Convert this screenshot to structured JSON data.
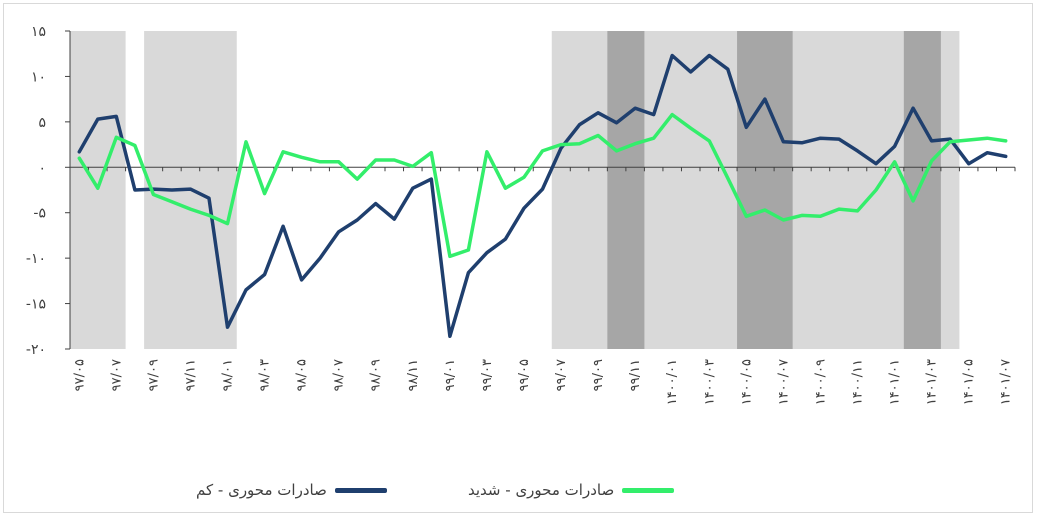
{
  "chart_data": {
    "type": "line",
    "title": "",
    "xlabel": "",
    "ylabel": "",
    "ylim": [
      -20,
      15
    ],
    "y_ticks": [
      "۱۵",
      "۱۰",
      "۵",
      "۰",
      "-۵",
      "-۱۰",
      "-۱۵",
      "-۲۰"
    ],
    "y_tick_values": [
      15,
      10,
      5,
      0,
      -5,
      -10,
      -15,
      -20
    ],
    "x": [
      "۹۷/۰۵",
      "۹۷/۰۶",
      "۹۷/۰۷",
      "۹۷/۰۸",
      "۹۷/۰۹",
      "۹۷/۱۰",
      "۹۷/۱۱",
      "۹۷/۱۲",
      "۹۸/۰۱",
      "۹۸/۰۲",
      "۹۸/۰۳",
      "۹۸/۰۴",
      "۹۸/۰۵",
      "۹۸/۰۶",
      "۹۸/۰۷",
      "۹۸/۰۸",
      "۹۸/۰۹",
      "۹۸/۱۰",
      "۹۸/۱۱",
      "۹۸/۱۲",
      "۹۹/۰۱",
      "۹۹/۰۲",
      "۹۹/۰۳",
      "۹۹/۰۴",
      "۹۹/۰۵",
      "۹۹/۰۶",
      "۹۹/۰۷",
      "۹۹/۰۸",
      "۹۹/۰۹",
      "۹۹/۱۰",
      "۹۹/۱۱",
      "۹۹/۱۲",
      "۱۴۰۰/۰۱",
      "۱۴۰۰/۰۲",
      "۱۴۰۰/۰۳",
      "۱۴۰۰/۰۴",
      "۱۴۰۰/۰۵",
      "۱۴۰۰/۰۶",
      "۱۴۰۰/۰۷",
      "۱۴۰۰/۰۸",
      "۱۴۰۰/۰۹",
      "۱۴۰۰/۱۰",
      "۱۴۰۰/۱۱",
      "۱۴۰۰/۱۲",
      "۱۴۰۱/۰۱",
      "۱۴۰۱/۰۲",
      "۱۴۰۱/۰۳",
      "۱۴۰۱/۰۴",
      "۱۴۰۱/۰۵",
      "۱۴۰۱/۰۶",
      "۱۴۰۱/۰۷"
    ],
    "x_tick_labels": [
      "۹۷/۰۵",
      "۹۷/۰۷",
      "۹۷/۰۹",
      "۹۷/۱۱",
      "۹۸/۰۱",
      "۹۸/۰۳",
      "۹۸/۰۵",
      "۹۸/۰۷",
      "۹۸/۰۹",
      "۹۸/۱۱",
      "۹۹/۰۱",
      "۹۹/۰۳",
      "۹۹/۰۵",
      "۹۹/۰۷",
      "۹۹/۰۹",
      "۹۹/۱۱",
      "۱۴۰۰/۰۱",
      "۱۴۰۰/۰۳",
      "۱۴۰۰/۰۵",
      "۱۴۰۰/۰۷",
      "۱۴۰۰/۰۹",
      "۱۴۰۰/۱۱",
      "۱۴۰۱/۰۱",
      "۱۴۰۱/۰۳",
      "۱۴۰۱/۰۵",
      "۱۴۰۱/۰۷"
    ],
    "series": [
      {
        "name": "صادرات محوری - کم",
        "color": "#1f3f6e",
        "values": [
          1.7,
          5.3,
          5.6,
          -2.5,
          -2.4,
          -2.5,
          -2.4,
          -3.4,
          -17.6,
          -13.5,
          -11.8,
          -6.5,
          -12.4,
          -10.0,
          -7.1,
          -5.8,
          -4.0,
          -5.7,
          -2.3,
          -1.3,
          -18.6,
          -11.6,
          -9.4,
          -7.9,
          -4.5,
          -2.4,
          2.1,
          4.7,
          6.0,
          4.9,
          6.5,
          5.8,
          12.3,
          10.5,
          12.3,
          10.8,
          4.4,
          7.5,
          2.8,
          2.7,
          3.2,
          3.1,
          1.8,
          0.4,
          2.3,
          6.5,
          2.9,
          3.1,
          0.4,
          1.6,
          1.2
        ]
      },
      {
        "name": "صادرات محوری - شدید",
        "color": "#33ee6b",
        "values": [
          1.0,
          -2.3,
          3.3,
          2.4,
          -3.0,
          -3.8,
          -4.6,
          -5.3,
          -6.2,
          2.8,
          -2.9,
          1.7,
          1.1,
          0.6,
          0.6,
          -1.3,
          0.8,
          0.8,
          0.1,
          1.6,
          -9.8,
          -9.1,
          1.7,
          -2.3,
          -1.1,
          1.8,
          2.5,
          2.6,
          3.5,
          1.8,
          2.6,
          3.2,
          5.8,
          4.3,
          2.9,
          -1.2,
          -5.4,
          -4.7,
          -5.8,
          -5.3,
          -5.4,
          -4.6,
          -4.8,
          -2.5,
          0.6,
          -3.7,
          0.7,
          2.8,
          3.0,
          3.2,
          2.9
        ]
      }
    ],
    "shaded_regions": [
      {
        "from": "۹۷/۰۵",
        "to": "۹۷/۰۷",
        "shade": "light"
      },
      {
        "from": "۹۷/۰۹",
        "to": "۹۸/۰۱",
        "shade": "light"
      },
      {
        "from": "۹۹/۰۷",
        "to": "۱۴۰۱/۰۴",
        "shade": "light"
      },
      {
        "from": "۹۹/۱۰",
        "to": "۹۹/۱۱",
        "shade": "dark"
      },
      {
        "from": "۱۴۰۰/۰۵",
        "to": "۱۴۰۰/۰۷",
        "shade": "dark"
      },
      {
        "from": "۱۴۰۱/۰۲",
        "to": "۱۴۰۱/۰۳",
        "shade": "dark"
      }
    ],
    "shade_colors": {
      "light": "#d9d9d9",
      "dark": "#a6a6a6"
    },
    "grid": false,
    "legend_position": "bottom"
  }
}
